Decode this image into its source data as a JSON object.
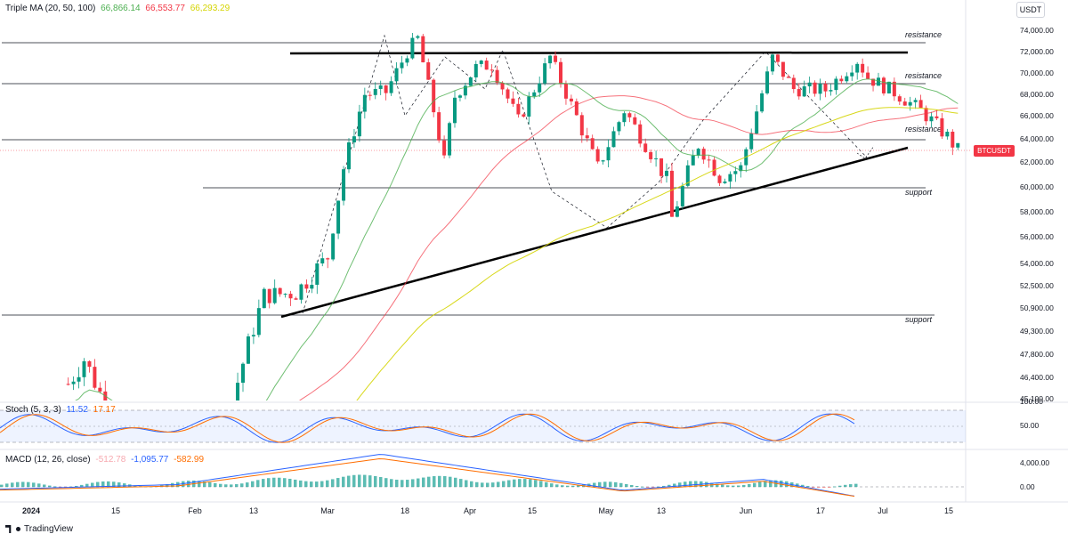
{
  "header": {
    "price_indicator": "Triple MA (20, 50, 100)",
    "ma20_value": "66,866.14",
    "ma50_value": "66,553.77",
    "ma100_value": "66,293.29",
    "currency_button": "USDT",
    "symbol_tag": "BTCUSDT",
    "stoch_indicator": "Stoch (5, 3, 3)",
    "stoch_k": "11.52",
    "stoch_d": "17.17",
    "macd_indicator": "MACD (12, 26, close)",
    "macd_hist": "-512.78",
    "macd_line": "-1,095.77",
    "macd_signal": "-582.99",
    "brand": "TradingView"
  },
  "colors": {
    "up": "#089981",
    "down": "#f23645",
    "ma20": "#4caf50",
    "ma50": "#f23645",
    "ma100": "#d4d400",
    "stoch_k": "#2962ff",
    "stoch_d": "#ff6d00",
    "macd_line": "#2962ff",
    "macd_signal": "#ff6d00"
  },
  "chart_data": {
    "type": "candlestick",
    "symbol": "BTCUSDT",
    "x_ticks": [
      "2024",
      "15",
      "Feb",
      "13",
      "Mar",
      "18",
      "Apr",
      "15",
      "May",
      "13",
      "Jun",
      "17",
      "Jul",
      "15"
    ],
    "price_ticks": [
      "74,000.00",
      "72,000.00",
      "70,000.00",
      "68,000.00",
      "66,000.00",
      "64,000.00",
      "62,000.00",
      "60,000.00",
      "58,000.00",
      "56,000.00",
      "54,000.00",
      "52,500.00",
      "50,900.00",
      "49,300.00",
      "47,800.00",
      "46,400.00",
      "45,100.00"
    ],
    "stoch_ticks": [
      "100.00",
      "50.00"
    ],
    "macd_ticks": [
      "4,000.00",
      "0.00"
    ],
    "annotations": [
      "resistance",
      "resistance",
      "resistance",
      "support",
      "support"
    ],
    "candles_sample": [
      {
        "date": "2024-02-26",
        "open": 51700,
        "close": 54500
      },
      {
        "date": "2024-03-14",
        "open": 71500,
        "close": 73700
      },
      {
        "date": "2024-05-01",
        "open": 60600,
        "close": 56600
      },
      {
        "date": "2024-06-05",
        "open": 71000,
        "close": 71800
      },
      {
        "date": "2024-06-24",
        "open": 63200,
        "close": 62900
      }
    ]
  }
}
